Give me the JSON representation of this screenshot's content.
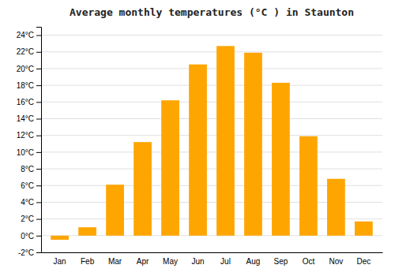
{
  "chart_data": {
    "type": "bar",
    "title": "Average monthly temperatures (°C ) in Staunton",
    "categories": [
      "Jan",
      "Feb",
      "Mar",
      "Apr",
      "May",
      "Jun",
      "Jul",
      "Aug",
      "Sep",
      "Oct",
      "Nov",
      "Dec"
    ],
    "values": [
      -0.5,
      1.0,
      6.1,
      11.2,
      16.2,
      20.5,
      22.7,
      21.9,
      18.3,
      11.9,
      6.8,
      1.7
    ],
    "color": "#FFA500",
    "ylim": [
      -2,
      25
    ],
    "yticks": [
      {
        "value": -2,
        "label": "-2°C"
      },
      {
        "value": 0,
        "label": "0°C"
      },
      {
        "value": 2,
        "label": "2°C"
      },
      {
        "value": 4,
        "label": "4°C"
      },
      {
        "value": 6,
        "label": "6°C"
      },
      {
        "value": 8,
        "label": "8°C"
      },
      {
        "value": 10,
        "label": "10°C"
      },
      {
        "value": 12,
        "label": "12°C"
      },
      {
        "value": 14,
        "label": "14°C"
      },
      {
        "value": 16,
        "label": "16°C"
      },
      {
        "value": 18,
        "label": "18°C"
      },
      {
        "value": 20,
        "label": "20°C"
      },
      {
        "value": 22,
        "label": "22°C"
      },
      {
        "value": 24,
        "label": "24°C"
      }
    ],
    "grid": true
  }
}
